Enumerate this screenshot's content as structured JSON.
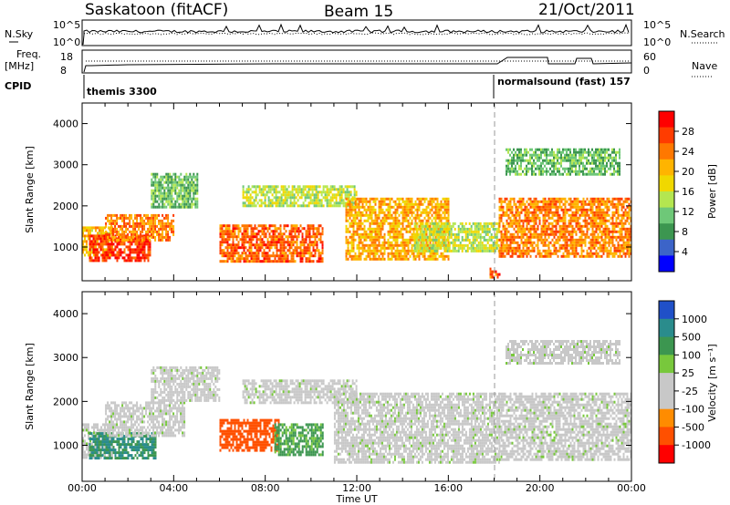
{
  "header": {
    "station": "Saskatoon (fitACF)",
    "beam": "Beam 15",
    "date": "21/Oct/2011"
  },
  "summary": {
    "nsky_label": "N.Sky",
    "nsearch_label": "N.Search",
    "noise_ticks_left": [
      "10^5",
      "10^0"
    ],
    "noise_ticks_right": [
      "10^5",
      "10^0"
    ],
    "freq_label_1": "Freq.",
    "freq_label_2": "[MHz]",
    "freq_ticks": [
      "18",
      "8"
    ],
    "nave_label": "Nave",
    "nave_ticks": [
      "60",
      "0"
    ],
    "cpid_label": "CPID",
    "cpid_1": "themis 3300",
    "cpid_2": "normalsound (fast) 157"
  },
  "colorbars": {
    "power_label": "Power [dB]",
    "power_ticks": [
      "28",
      "24",
      "20",
      "16",
      "12",
      "8",
      "4"
    ],
    "power_colors": [
      "#ff0000",
      "#ff3c00",
      "#ff7800",
      "#ffb400",
      "#f0d800",
      "#b4e650",
      "#6ec878",
      "#3c9650",
      "#3c64c8",
      "#0000ff"
    ],
    "velocity_label": "Velocity [m s⁻¹]",
    "velocity_ticks": [
      "1000",
      "500",
      "100",
      "25",
      "-25",
      "-100",
      "-500",
      "-1000"
    ],
    "velocity_colors": [
      "#2050c8",
      "#2a8c8c",
      "#3c9650",
      "#78c83c",
      "#c8c8c8",
      "#c8c8c8",
      "#ff8c00",
      "#ff5000",
      "#ff0000"
    ]
  },
  "axes": {
    "ylabel": "Slant Range [km]",
    "xlabel": "Time UT",
    "x_ticks": [
      "00:00",
      "04:00",
      "08:00",
      "12:00",
      "16:00",
      "20:00",
      "00:00"
    ],
    "y_ticks": [
      "1000",
      "2000",
      "3000",
      "4000"
    ]
  },
  "chart_data": [
    {
      "type": "heatmap",
      "title": "Power",
      "xlabel": "",
      "ylabel": "Slant Range [km]",
      "x_range_hours": [
        0,
        24
      ],
      "y_range_km": [
        180,
        4500
      ],
      "colorbar": "power",
      "regions": [
        {
          "t0": 0.0,
          "t1": 1.3,
          "r0": 800,
          "r1": 1500,
          "db": 18
        },
        {
          "t0": 0.3,
          "t1": 3.0,
          "r0": 700,
          "r1": 1300,
          "db": 26
        },
        {
          "t0": 1.0,
          "t1": 4.0,
          "r0": 1200,
          "r1": 1800,
          "db": 22
        },
        {
          "t0": 3.0,
          "t1": 5.0,
          "r0": 2000,
          "r1": 2800,
          "db": 10
        },
        {
          "t0": 6.0,
          "t1": 10.5,
          "r0": 650,
          "r1": 1550,
          "db": 24
        },
        {
          "t0": 7.0,
          "t1": 12.0,
          "r0": 2000,
          "r1": 2500,
          "db": 14
        },
        {
          "t0": 11.5,
          "t1": 16.0,
          "r0": 700,
          "r1": 2200,
          "db": 20
        },
        {
          "t0": 14.5,
          "t1": 18.2,
          "r0": 900,
          "r1": 1600,
          "db": 14
        },
        {
          "t0": 17.8,
          "t1": 18.2,
          "r0": 300,
          "r1": 500,
          "db": 24
        },
        {
          "t0": 18.2,
          "t1": 24.0,
          "r0": 800,
          "r1": 2200,
          "db": 22
        },
        {
          "t0": 18.5,
          "t1": 23.5,
          "r0": 2800,
          "r1": 3400,
          "db": 10
        }
      ]
    },
    {
      "type": "heatmap",
      "title": "Velocity",
      "xlabel": "Time UT",
      "ylabel": "Slant Range [km]",
      "x_range_hours": [
        0,
        24
      ],
      "y_range_km": [
        180,
        4500
      ],
      "colorbar": "velocity",
      "regions": [
        {
          "t0": 0.0,
          "t1": 1.3,
          "r0": 700,
          "r1": 1500,
          "v": 0
        },
        {
          "t0": 0.3,
          "t1": 3.2,
          "r0": 700,
          "r1": 1300,
          "v": 300
        },
        {
          "t0": 1.0,
          "t1": 4.5,
          "r0": 1200,
          "r1": 2000,
          "v": 0
        },
        {
          "t0": 3.0,
          "t1": 6.0,
          "r0": 2000,
          "r1": 2800,
          "v": 0
        },
        {
          "t0": 6.0,
          "t1": 8.6,
          "r0": 900,
          "r1": 1600,
          "v": -400
        },
        {
          "t0": 8.4,
          "t1": 10.5,
          "r0": 800,
          "r1": 1500,
          "v": 80
        },
        {
          "t0": 7.0,
          "t1": 12.0,
          "r0": 2000,
          "r1": 2500,
          "v": 0
        },
        {
          "t0": 11.0,
          "t1": 18.2,
          "r0": 600,
          "r1": 2200,
          "v": 0
        },
        {
          "t0": 18.2,
          "t1": 24.0,
          "r0": 700,
          "r1": 2200,
          "v": 0
        },
        {
          "t0": 18.5,
          "t1": 23.5,
          "r0": 2900,
          "r1": 3400,
          "v": 0
        }
      ]
    }
  ]
}
